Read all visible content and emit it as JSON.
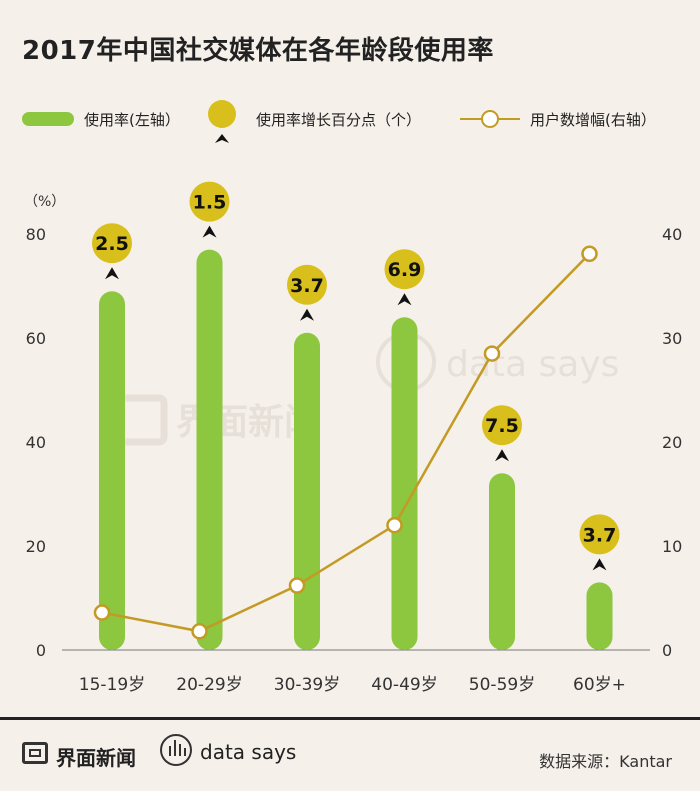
{
  "title": "2017年中国社交媒体在各年龄段使用率",
  "legend": {
    "bar_label": "使用率(左轴）",
    "circle_label": "使用率增长百分点（个）",
    "line_label": "用户数增幅(右轴）"
  },
  "footer": {
    "brand": "界面新闻",
    "data_says": "data says",
    "source": "数据来源：Kantar"
  },
  "watermark": {
    "brand": "界面新闻",
    "data_says": "data says"
  },
  "colors": {
    "bar": "#8dc63f",
    "circle": "#d8bf1c",
    "line": "#c39a23",
    "background": "#f5f0ea"
  },
  "chart_data": {
    "type": "bar",
    "categories": [
      "15-19岁",
      "20-29岁",
      "30-39岁",
      "40-49岁",
      "50-59岁",
      "60岁+"
    ],
    "y_unit": "（%）",
    "ylim_left": [
      0,
      80
    ],
    "yticks_left": [
      0,
      20,
      40,
      60,
      80
    ],
    "ylim_right": [
      0,
      40
    ],
    "yticks_right": [
      0,
      10,
      20,
      30,
      40
    ],
    "series": [
      {
        "name": "使用率(左轴）",
        "type": "bar",
        "axis": "left",
        "values": [
          69,
          77,
          61,
          64,
          34,
          13
        ]
      },
      {
        "name": "使用率增长百分点（个）",
        "type": "label",
        "values": [
          "2.5",
          "1.5",
          "3.7",
          "6.9",
          "7.5",
          "3.7"
        ]
      },
      {
        "name": "用户数增幅(右轴）",
        "type": "line",
        "axis": "right",
        "values": [
          3.6,
          1.8,
          6.2,
          12.0,
          28.5,
          38.1
        ]
      }
    ]
  }
}
